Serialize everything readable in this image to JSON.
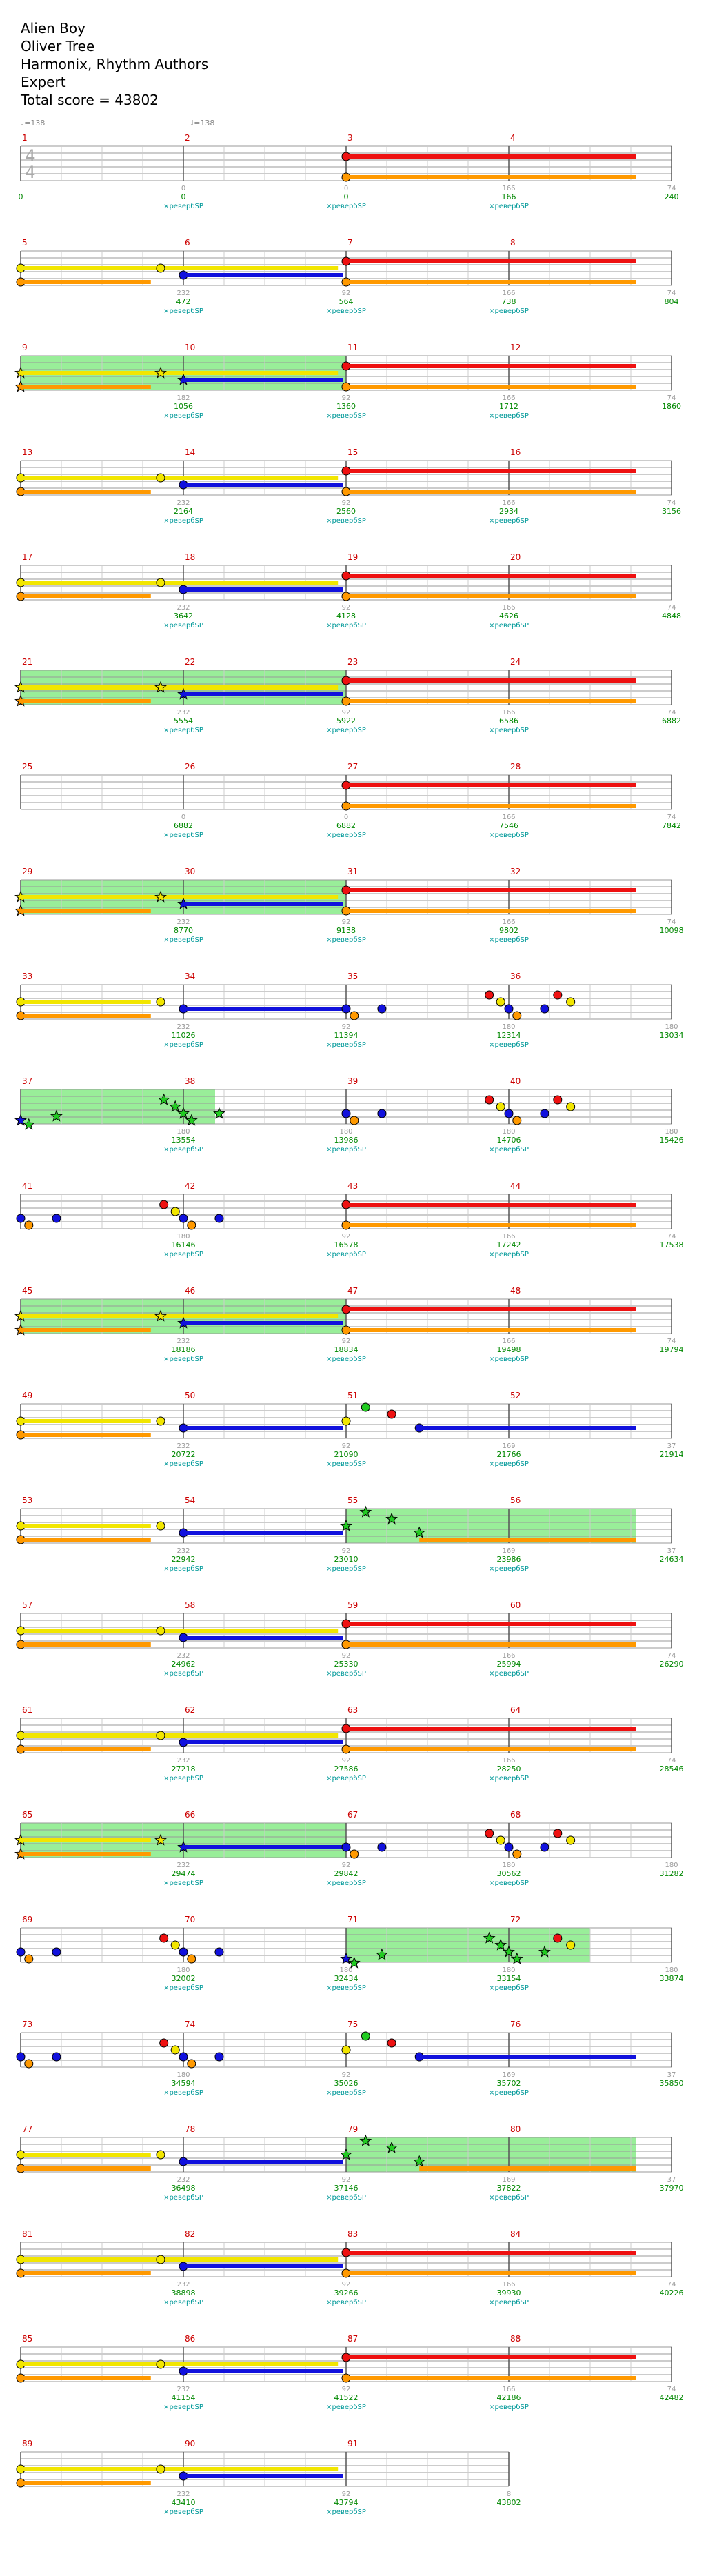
{
  "song": {
    "title": "Alien Boy",
    "artist": "Oliver Tree",
    "charter": "Harmonix, Rhythm Authors",
    "difficulty": "Expert",
    "total_score_label": "Total score = 43802"
  },
  "tempo_markers": [
    "♩=138",
    "♩=138"
  ],
  "time_signature": {
    "top": "4",
    "bottom": "4"
  },
  "sp_label": "×ревербSP",
  "colors": {
    "green": "#22cc22",
    "red": "#ee1111",
    "yellow": "#f2e600",
    "blue": "#1111dd",
    "orange": "#ff9900",
    "measure_number": "#cc0000",
    "score": "#008800",
    "sp_text": "#009999",
    "star_power": "#99ee99"
  },
  "chart_data": {
    "type": "table",
    "rows": [
      {
        "measures": [
          1,
          2,
          3,
          4
        ],
        "scores": [
          "0",
          "0",
          "0",
          "166",
          "240"
        ],
        "deltas": [
          "",
          "0",
          "0",
          "166",
          "74"
        ],
        "pattern": "intro"
      },
      {
        "measures": [
          5,
          6,
          7,
          8
        ],
        "scores": [
          "",
          "472",
          "564",
          "738",
          "804"
        ],
        "deltas": [
          "",
          "232",
          "92",
          "166",
          "74"
        ],
        "pattern": "verse"
      },
      {
        "measures": [
          9,
          10,
          11,
          12
        ],
        "scores": [
          "",
          "1056",
          "1360",
          "1712",
          "1860"
        ],
        "deltas": [
          "",
          "182",
          "92",
          "166",
          "74"
        ],
        "pattern": "verse_sp"
      },
      {
        "measures": [
          13,
          14,
          15,
          16
        ],
        "scores": [
          "",
          "2164",
          "2560",
          "2934",
          "3156"
        ],
        "deltas": [
          "",
          "232",
          "92",
          "166",
          "74"
        ],
        "pattern": "verse"
      },
      {
        "measures": [
          17,
          18,
          19,
          20
        ],
        "scores": [
          "",
          "3642",
          "4128",
          "4626",
          "4848"
        ],
        "deltas": [
          "",
          "232",
          "92",
          "166",
          "74"
        ],
        "pattern": "verse"
      },
      {
        "measures": [
          21,
          22,
          23,
          24
        ],
        "scores": [
          "",
          "5554",
          "5922",
          "6586",
          "6882"
        ],
        "deltas": [
          "",
          "232",
          "92",
          "166",
          "74"
        ],
        "pattern": "verse_sp"
      },
      {
        "measures": [
          25,
          26,
          27,
          28
        ],
        "scores": [
          "",
          "6882",
          "6882",
          "7546",
          "7842"
        ],
        "deltas": [
          "",
          "0",
          "0",
          "166",
          "74"
        ],
        "pattern": "intro"
      },
      {
        "measures": [
          29,
          30,
          31,
          32
        ],
        "scores": [
          "",
          "8770",
          "9138",
          "9802",
          "10098"
        ],
        "deltas": [
          "",
          "232",
          "92",
          "166",
          "74"
        ],
        "pattern": "verse_sp"
      },
      {
        "measures": [
          33,
          34,
          35,
          36
        ],
        "scores": [
          "",
          "11026",
          "11394",
          "12314",
          "13034"
        ],
        "deltas": [
          "",
          "232",
          "92",
          "180",
          "180"
        ],
        "pattern": "chorus"
      },
      {
        "measures": [
          37,
          38,
          39,
          40
        ],
        "scores": [
          "",
          "13554",
          "13986",
          "14706",
          "15426"
        ],
        "deltas": [
          "",
          "180",
          "180",
          "180",
          "180"
        ],
        "pattern": "chorus_sp"
      },
      {
        "measures": [
          41,
          42,
          43,
          44
        ],
        "scores": [
          "",
          "16146",
          "16578",
          "17242",
          "17538"
        ],
        "deltas": [
          "",
          "180",
          "92",
          "166",
          "74"
        ],
        "pattern": "chorus_end"
      },
      {
        "measures": [
          45,
          46,
          47,
          48
        ],
        "scores": [
          "",
          "18186",
          "18834",
          "19498",
          "19794"
        ],
        "deltas": [
          "",
          "232",
          "92",
          "166",
          "74"
        ],
        "pattern": "verse_sp"
      },
      {
        "measures": [
          49,
          50,
          51,
          52
        ],
        "scores": [
          "",
          "20722",
          "21090",
          "21766",
          "21914"
        ],
        "deltas": [
          "",
          "232",
          "92",
          "169",
          "37"
        ],
        "pattern": "bridge"
      },
      {
        "measures": [
          53,
          54,
          55,
          56
        ],
        "scores": [
          "",
          "22942",
          "23010",
          "23986",
          "24634"
        ],
        "deltas": [
          "",
          "232",
          "92",
          "169",
          "37"
        ],
        "pattern": "bridge_sp"
      },
      {
        "measures": [
          57,
          58,
          59,
          60
        ],
        "scores": [
          "",
          "24962",
          "25330",
          "25994",
          "26290"
        ],
        "deltas": [
          "",
          "232",
          "92",
          "166",
          "74"
        ],
        "pattern": "verse"
      },
      {
        "measures": [
          61,
          62,
          63,
          64
        ],
        "scores": [
          "",
          "27218",
          "27586",
          "28250",
          "28546"
        ],
        "deltas": [
          "",
          "232",
          "92",
          "166",
          "74"
        ],
        "pattern": "verse"
      },
      {
        "measures": [
          65,
          66,
          67,
          68
        ],
        "scores": [
          "",
          "29474",
          "29842",
          "30562",
          "31282"
        ],
        "deltas": [
          "",
          "232",
          "92",
          "180",
          "180"
        ],
        "pattern": "chorus_sp_start"
      },
      {
        "measures": [
          69,
          70,
          71,
          72
        ],
        "scores": [
          "",
          "32002",
          "32434",
          "33154",
          "33874"
        ],
        "deltas": [
          "",
          "180",
          "180",
          "180",
          "180"
        ],
        "pattern": "chorus_sp_mid"
      },
      {
        "measures": [
          73,
          74,
          75,
          76
        ],
        "scores": [
          "",
          "34594",
          "35026",
          "35702",
          "35850"
        ],
        "deltas": [
          "",
          "180",
          "92",
          "169",
          "37"
        ],
        "pattern": "bridge_in"
      },
      {
        "measures": [
          77,
          78,
          79,
          80
        ],
        "scores": [
          "",
          "36498",
          "37146",
          "37822",
          "37970"
        ],
        "deltas": [
          "",
          "232",
          "92",
          "169",
          "37"
        ],
        "pattern": "bridge_sp"
      },
      {
        "measures": [
          81,
          82,
          83,
          84
        ],
        "scores": [
          "",
          "38898",
          "39266",
          "39930",
          "40226"
        ],
        "deltas": [
          "",
          "232",
          "92",
          "166",
          "74"
        ],
        "pattern": "verse"
      },
      {
        "measures": [
          85,
          86,
          87,
          88
        ],
        "scores": [
          "",
          "41154",
          "41522",
          "42186",
          "42482"
        ],
        "deltas": [
          "",
          "232",
          "92",
          "166",
          "74"
        ],
        "pattern": "verse"
      },
      {
        "measures": [
          89,
          90,
          91
        ],
        "scores": [
          "",
          "43410",
          "43794",
          "43802"
        ],
        "deltas": [
          "",
          "232",
          "92",
          "8"
        ],
        "pattern": "outro"
      }
    ]
  }
}
